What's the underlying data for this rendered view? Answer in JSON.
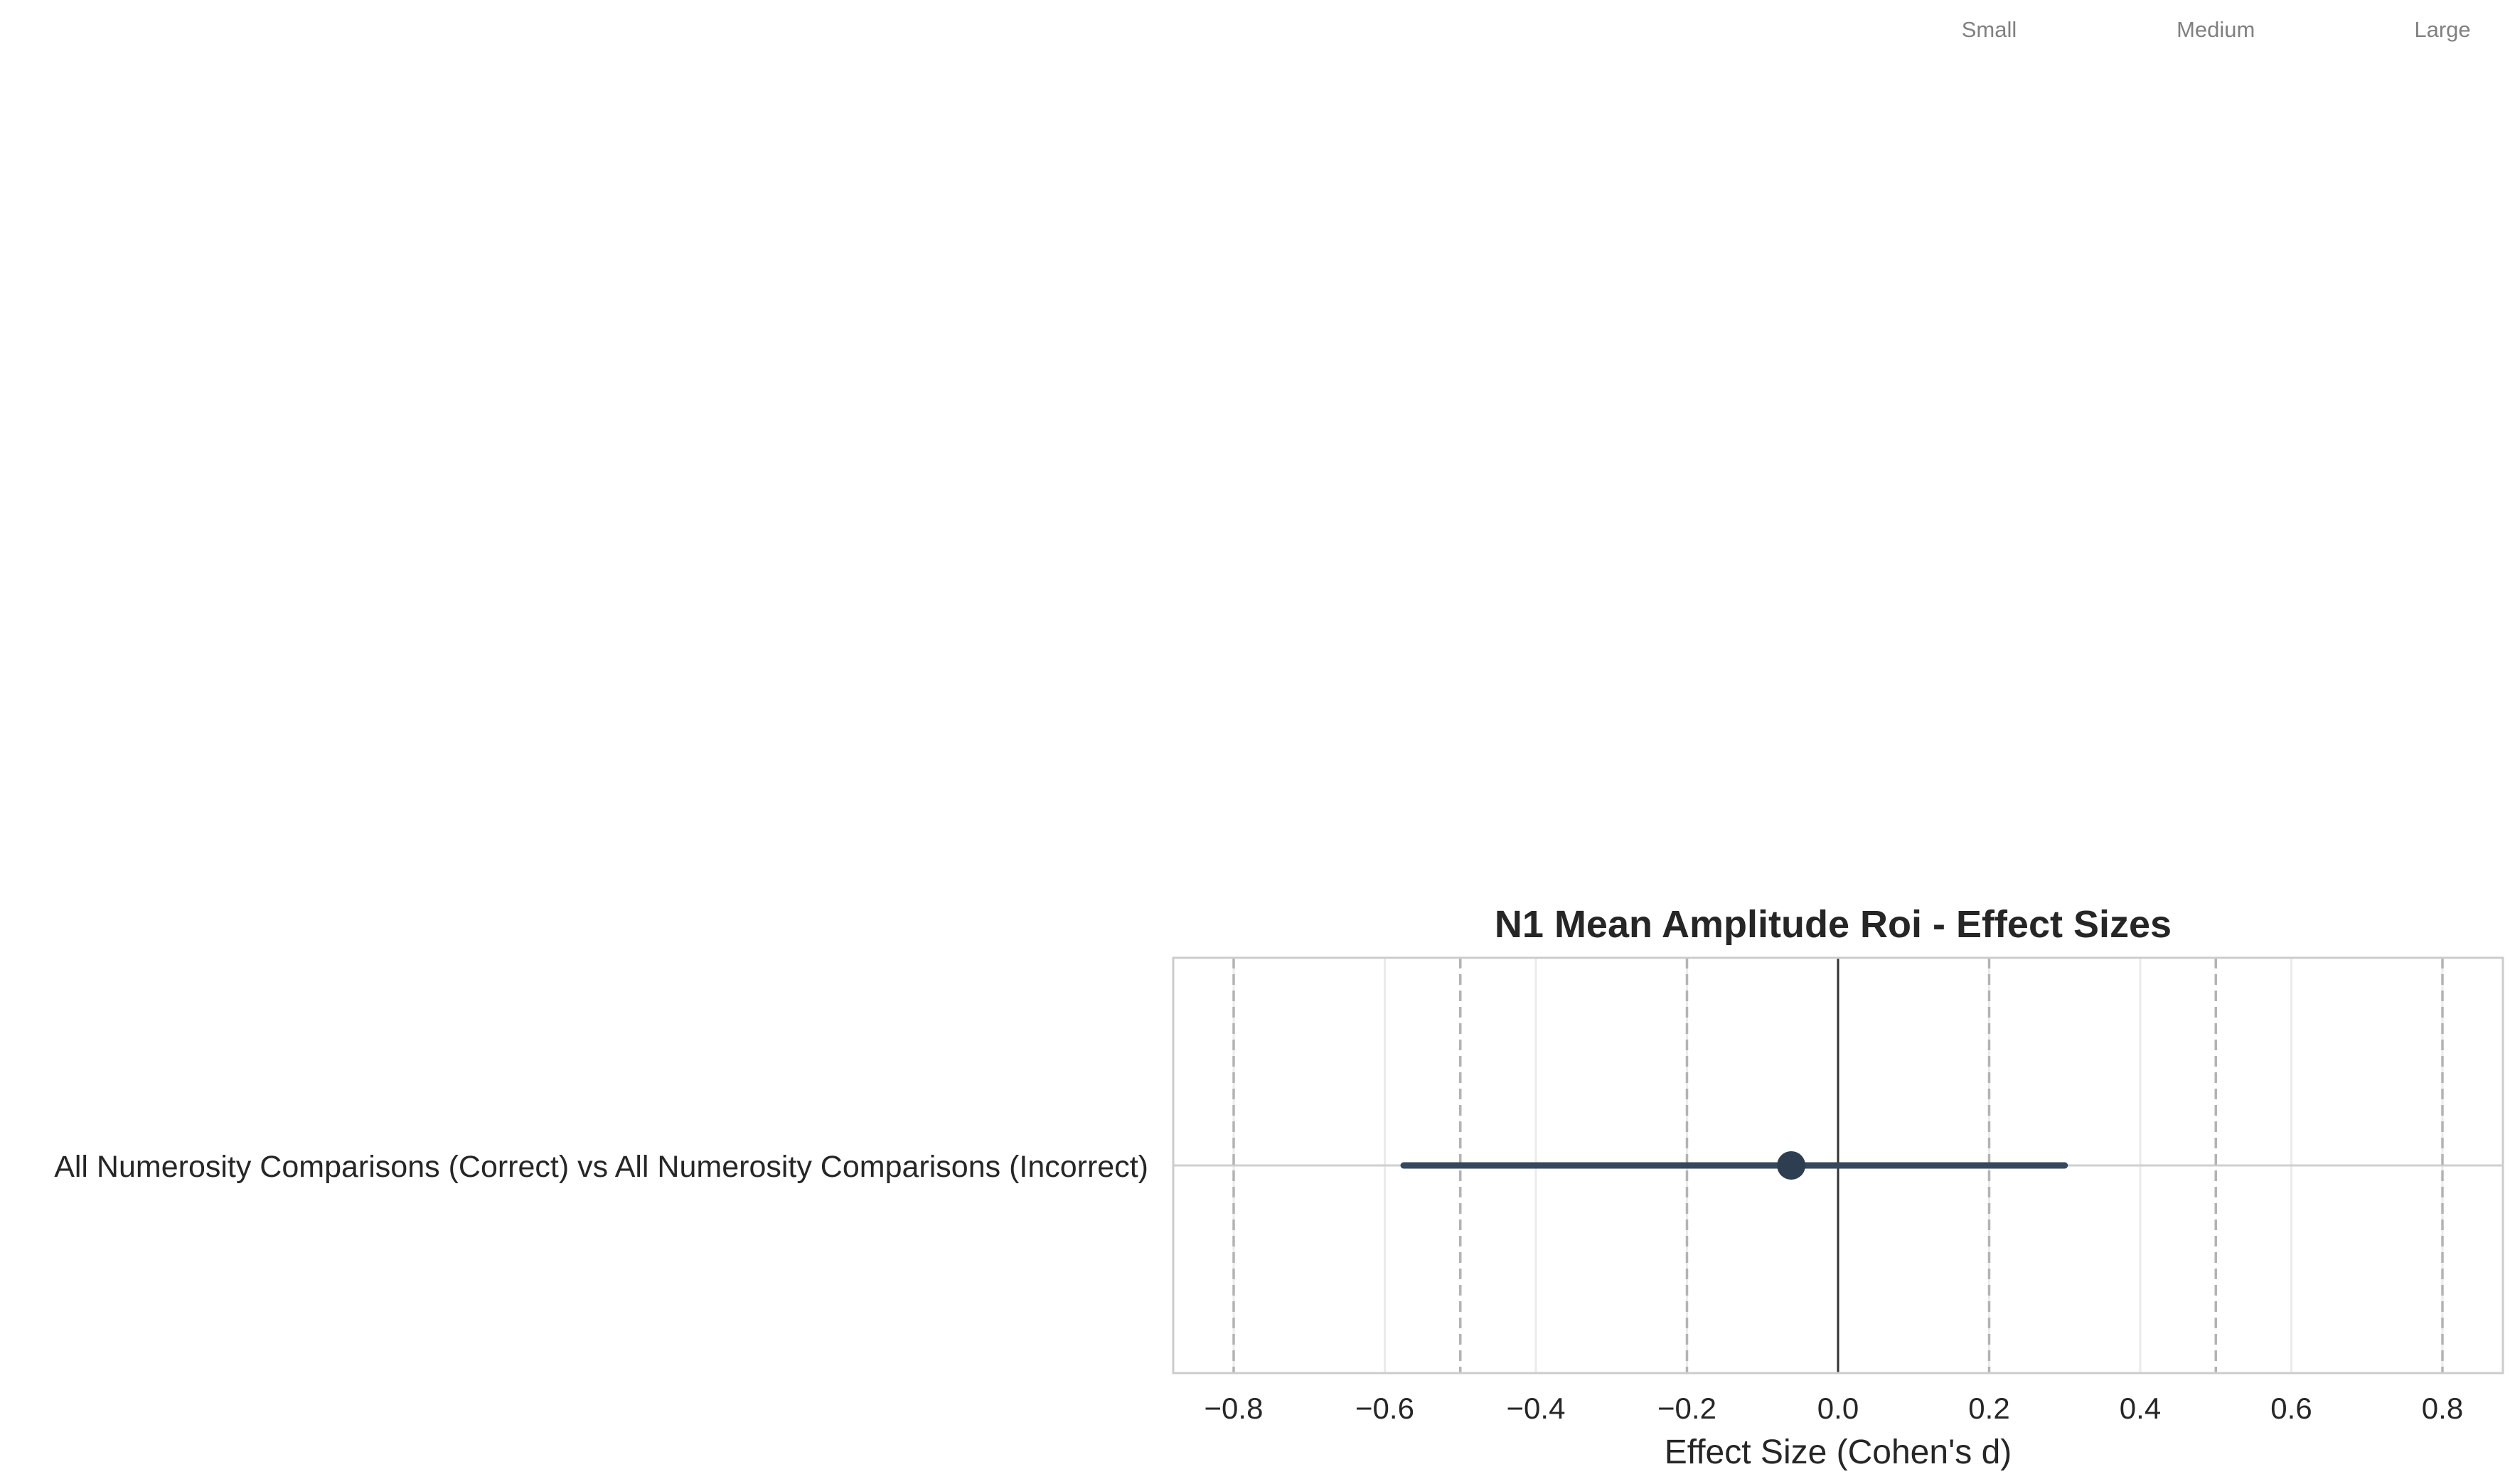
{
  "chart_data": {
    "type": "forest",
    "title": "N1 Mean Amplitude Roi - Effect Sizes",
    "xlabel": "Effect Size (Cohen's d)",
    "ylabel": "",
    "xlim": [
      -0.88,
      0.88
    ],
    "xticks": [
      -0.8,
      -0.6,
      -0.4,
      -0.2,
      0.0,
      0.2,
      0.4,
      0.6,
      0.8
    ],
    "xtick_labels": [
      "−0.8",
      "−0.6",
      "−0.4",
      "−0.2",
      "0.0",
      "0.2",
      "0.4",
      "0.6",
      "0.8"
    ],
    "grid": true,
    "zero_line": 0.0,
    "reference_lines": [
      {
        "label": "Small",
        "values": [
          -0.2,
          0.2
        ]
      },
      {
        "label": "Medium",
        "values": [
          -0.5,
          0.5
        ]
      },
      {
        "label": "Large",
        "values": [
          -0.8,
          0.8
        ]
      }
    ],
    "rows": [
      {
        "label": "All Numerosity Comparisons (Correct) vs All Numerosity Comparisons (Incorrect)",
        "estimate": -0.062,
        "ci_low": -0.575,
        "ci_high": 0.3
      }
    ],
    "colors": {
      "point": "#2c3e50",
      "ci_line": "#34495e",
      "zero_line": "#333333",
      "reference_line": "#b3b3b3",
      "grid": "#ebebeb",
      "frame": "#cccccc",
      "reference_label": "#808080"
    }
  }
}
